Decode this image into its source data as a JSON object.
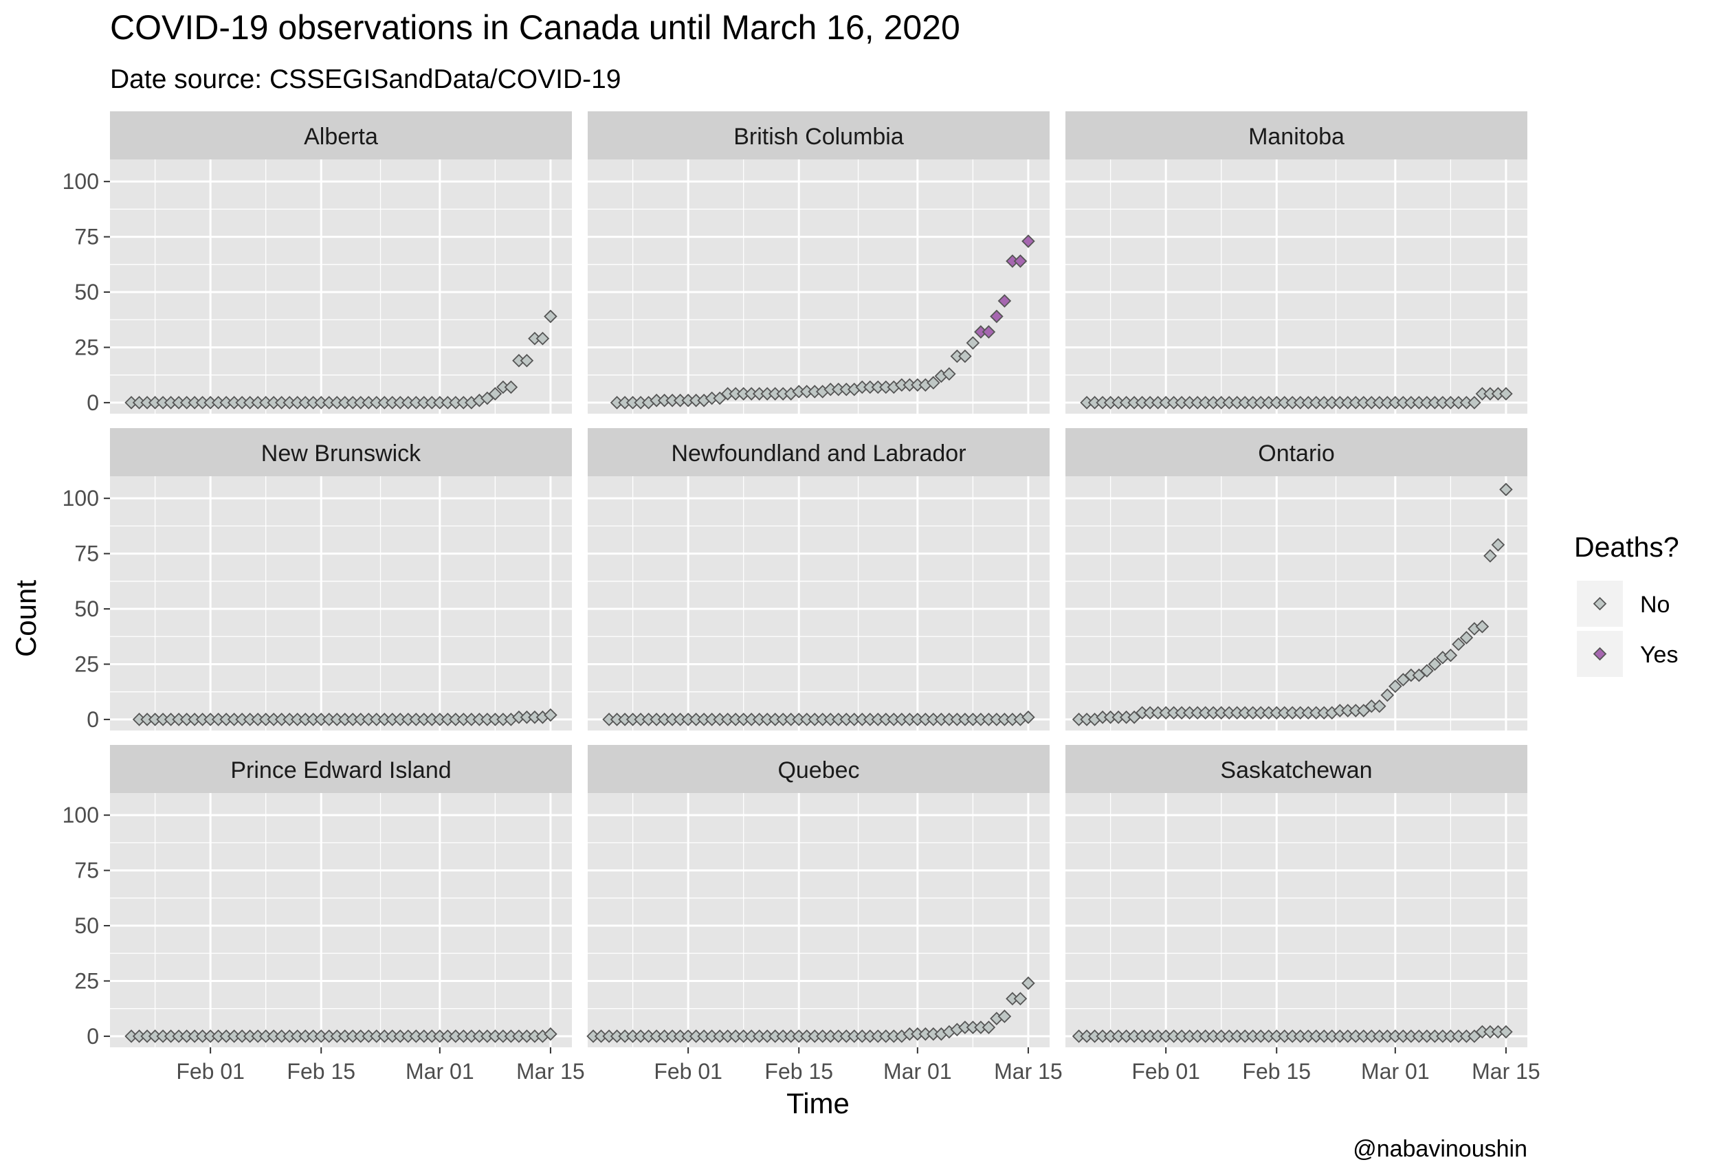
{
  "chart_data": {
    "type": "scatter",
    "title": "COVID-19 observations in Canada until March 16, 2020",
    "subtitle": "Date source: CSSEGISandData/COVID-19",
    "xlabel": "Time",
    "ylabel": "Count",
    "caption": "@nabavinoushin",
    "x_start_date": "2020-01-22",
    "x_end_date": "2020-03-15",
    "x_ticks": [
      {
        "label": "Feb 01",
        "date": "2020-02-01"
      },
      {
        "label": "Feb 15",
        "date": "2020-02-15"
      },
      {
        "label": "Mar 01",
        "date": "2020-03-01"
      },
      {
        "label": "Mar 15",
        "date": "2020-03-15"
      }
    ],
    "y_ticks": [
      0,
      25,
      50,
      75,
      100
    ],
    "ylim": [
      -5,
      110
    ],
    "grid": true,
    "legend": {
      "title": "Deaths?",
      "position": "right",
      "items": [
        {
          "label": "No",
          "color": "#BFC7C5"
        },
        {
          "label": "Yes",
          "color": "#A667B0"
        }
      ]
    },
    "colors": {
      "No": "#BFC7C5",
      "Yes": "#A667B0",
      "stroke": "#555555",
      "panel_bg": "#E5E5E5",
      "strip_bg": "#D0D0D0",
      "grid": "#FFFFFF"
    },
    "panels": [
      {
        "name": "Alberta",
        "counts": [
          0,
          0,
          0,
          0,
          0,
          0,
          0,
          0,
          0,
          0,
          0,
          0,
          0,
          0,
          0,
          0,
          0,
          0,
          0,
          0,
          0,
          0,
          0,
          0,
          0,
          0,
          0,
          0,
          0,
          0,
          0,
          0,
          0,
          0,
          0,
          0,
          0,
          0,
          0,
          0,
          0,
          0,
          0,
          0,
          1,
          2,
          4,
          7,
          7,
          19,
          19,
          29,
          29,
          39
        ],
        "deaths": []
      },
      {
        "name": "British Columbia",
        "counts": [
          0,
          0,
          0,
          0,
          0,
          1,
          1,
          1,
          1,
          1,
          1,
          1,
          2,
          2,
          4,
          4,
          4,
          4,
          4,
          4,
          4,
          4,
          4,
          5,
          5,
          5,
          5,
          6,
          6,
          6,
          6,
          7,
          7,
          7,
          7,
          7,
          8,
          8,
          8,
          8,
          9,
          12,
          13,
          21,
          21,
          27,
          32,
          32,
          39,
          46,
          64,
          64,
          73
        ],
        "deaths": [
          46,
          47,
          48,
          49,
          50,
          51,
          52
        ]
      },
      {
        "name": "Manitoba",
        "counts": [
          0,
          0,
          0,
          0,
          0,
          0,
          0,
          0,
          0,
          0,
          0,
          0,
          0,
          0,
          0,
          0,
          0,
          0,
          0,
          0,
          0,
          0,
          0,
          0,
          0,
          0,
          0,
          0,
          0,
          0,
          0,
          0,
          0,
          0,
          0,
          0,
          0,
          0,
          0,
          0,
          0,
          0,
          0,
          0,
          0,
          0,
          0,
          0,
          0,
          0,
          4,
          4,
          4,
          4
        ],
        "deaths": []
      },
      {
        "name": "New Brunswick",
        "counts": [
          0,
          0,
          0,
          0,
          0,
          0,
          0,
          0,
          0,
          0,
          0,
          0,
          0,
          0,
          0,
          0,
          0,
          0,
          0,
          0,
          0,
          0,
          0,
          0,
          0,
          0,
          0,
          0,
          0,
          0,
          0,
          0,
          0,
          0,
          0,
          0,
          0,
          0,
          0,
          0,
          0,
          0,
          0,
          0,
          0,
          0,
          0,
          0,
          1,
          1,
          1,
          1,
          2
        ],
        "deaths": []
      },
      {
        "name": "Newfoundland and Labrador",
        "counts": [
          0,
          0,
          0,
          0,
          0,
          0,
          0,
          0,
          0,
          0,
          0,
          0,
          0,
          0,
          0,
          0,
          0,
          0,
          0,
          0,
          0,
          0,
          0,
          0,
          0,
          0,
          0,
          0,
          0,
          0,
          0,
          0,
          0,
          0,
          0,
          0,
          0,
          0,
          0,
          0,
          0,
          0,
          0,
          0,
          0,
          0,
          0,
          0,
          0,
          0,
          0,
          0,
          0,
          1
        ],
        "deaths": []
      },
      {
        "name": "Ontario",
        "counts": [
          0,
          0,
          0,
          1,
          1,
          1,
          1,
          1,
          3,
          3,
          3,
          3,
          3,
          3,
          3,
          3,
          3,
          3,
          3,
          3,
          3,
          3,
          3,
          3,
          3,
          3,
          3,
          3,
          3,
          3,
          3,
          3,
          3,
          4,
          4,
          4,
          4,
          6,
          6,
          11,
          15,
          18,
          20,
          20,
          22,
          25,
          28,
          29,
          34,
          37,
          41,
          42,
          74,
          79,
          104
        ],
        "deaths": []
      },
      {
        "name": "Prince Edward Island",
        "counts": [
          0,
          0,
          0,
          0,
          0,
          0,
          0,
          0,
          0,
          0,
          0,
          0,
          0,
          0,
          0,
          0,
          0,
          0,
          0,
          0,
          0,
          0,
          0,
          0,
          0,
          0,
          0,
          0,
          0,
          0,
          0,
          0,
          0,
          0,
          0,
          0,
          0,
          0,
          0,
          0,
          0,
          0,
          0,
          0,
          0,
          0,
          0,
          0,
          0,
          0,
          0,
          0,
          0,
          1
        ],
        "deaths": []
      },
      {
        "name": "Quebec",
        "counts": [
          0,
          0,
          0,
          0,
          0,
          0,
          0,
          0,
          0,
          0,
          0,
          0,
          0,
          0,
          0,
          0,
          0,
          0,
          0,
          0,
          0,
          0,
          0,
          0,
          0,
          0,
          0,
          0,
          0,
          0,
          0,
          0,
          0,
          0,
          0,
          0,
          0,
          0,
          0,
          0,
          1,
          1,
          1,
          1,
          1,
          2,
          3,
          4,
          4,
          4,
          4,
          8,
          9,
          17,
          17,
          24
        ],
        "deaths": []
      },
      {
        "name": "Saskatchewan",
        "counts": [
          0,
          0,
          0,
          0,
          0,
          0,
          0,
          0,
          0,
          0,
          0,
          0,
          0,
          0,
          0,
          0,
          0,
          0,
          0,
          0,
          0,
          0,
          0,
          0,
          0,
          0,
          0,
          0,
          0,
          0,
          0,
          0,
          0,
          0,
          0,
          0,
          0,
          0,
          0,
          0,
          0,
          0,
          0,
          0,
          0,
          0,
          0,
          0,
          0,
          0,
          0,
          2,
          2,
          2,
          2
        ],
        "deaths": []
      }
    ]
  }
}
